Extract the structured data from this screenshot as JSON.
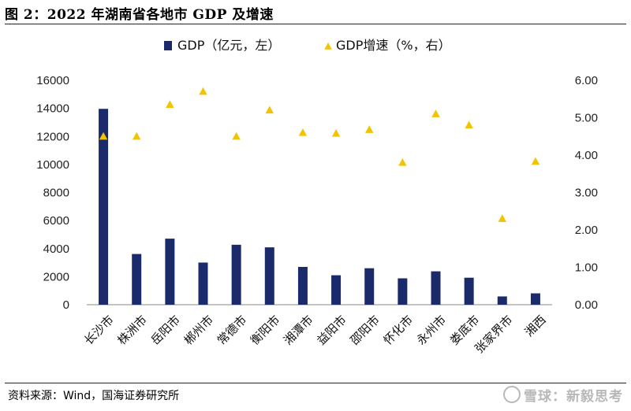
{
  "header": {
    "title": "图 2：2022 年湖南省各地市 GDP 及增速"
  },
  "footer": {
    "source": "资料来源：Wind，国海证券研究所",
    "watermark": "雪球：新毅思考"
  },
  "colors": {
    "bar": "#1b2a6b",
    "marker": "#f2c300",
    "axis": "#888888"
  },
  "chart_data": {
    "type": "bar",
    "categories": [
      "长沙市",
      "株洲市",
      "岳阳市",
      "郴州市",
      "常德市",
      "衡阳市",
      "湘潭市",
      "益阳市",
      "邵阳市",
      "怀化市",
      "永州市",
      "娄底市",
      "张家界市",
      "湘西"
    ],
    "series": [
      {
        "name": "GDP（亿元，左）",
        "type": "bar",
        "axis": "left",
        "values": [
          13966,
          3616,
          4710,
          3005,
          4274,
          4090,
          2696,
          2100,
          2600,
          1880,
          2380,
          1925,
          590,
          810
        ]
      },
      {
        "name": "GDP增速（%，右）",
        "type": "scatter",
        "axis": "right",
        "values": [
          4.5,
          4.5,
          5.35,
          5.7,
          4.5,
          5.2,
          4.6,
          4.58,
          4.68,
          3.8,
          5.1,
          4.8,
          2.3,
          3.83
        ]
      }
    ],
    "y_left": {
      "range": [
        0,
        16000
      ],
      "ticks": [
        "0",
        "2000",
        "4000",
        "6000",
        "8000",
        "10000",
        "12000",
        "14000",
        "16000"
      ]
    },
    "y_right": {
      "range": [
        0,
        6
      ],
      "ticks": [
        "0.00",
        "1.00",
        "2.00",
        "3.00",
        "4.00",
        "5.00",
        "6.00"
      ]
    },
    "grid": false,
    "legend": "top-center"
  }
}
